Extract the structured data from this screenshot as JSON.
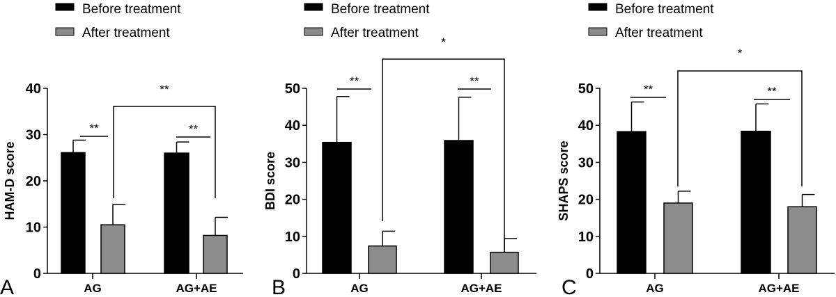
{
  "legend": {
    "before": "Before treatment",
    "after": "After treatment"
  },
  "colors": {
    "before": "#000000",
    "after": "#8c8c8c"
  },
  "chart_data": [
    {
      "type": "bar",
      "panel": "A",
      "ylabel": "HAM-D  score",
      "ylim": [
        0,
        40
      ],
      "yticks": [
        0,
        10,
        20,
        30,
        40
      ],
      "categories": [
        "AG",
        "AG+AE"
      ],
      "series": [
        {
          "name": "Before treatment",
          "values": [
            26.1,
            26.0
          ],
          "error": [
            2.7,
            2.4
          ]
        },
        {
          "name": "After treatment",
          "values": [
            10.5,
            8.2
          ],
          "error": [
            4.4,
            3.9
          ]
        }
      ],
      "annotations": {
        "pair": [
          "**",
          "**"
        ],
        "between": "**"
      }
    },
    {
      "type": "bar",
      "panel": "B",
      "ylabel": "BDI score",
      "ylim": [
        0,
        50
      ],
      "yticks": [
        0,
        10,
        20,
        30,
        40,
        50
      ],
      "categories": [
        "AG",
        "AG+AE"
      ],
      "series": [
        {
          "name": "Before treatment",
          "values": [
            35.4,
            35.9
          ],
          "error": [
            12.4,
            11.7
          ]
        },
        {
          "name": "After treatment",
          "values": [
            7.4,
            5.7
          ],
          "error": [
            4.0,
            3.7
          ]
        }
      ],
      "annotations": {
        "pair": [
          "**",
          "**"
        ],
        "between": "*"
      }
    },
    {
      "type": "bar",
      "panel": "C",
      "ylabel": "SHAPS  score",
      "ylim": [
        0,
        50
      ],
      "yticks": [
        0,
        10,
        20,
        30,
        40,
        50
      ],
      "categories": [
        "AG",
        "AG+AE"
      ],
      "series": [
        {
          "name": "Before treatment",
          "values": [
            38.3,
            38.4
          ],
          "error": [
            8.0,
            7.4
          ]
        },
        {
          "name": "After treatment",
          "values": [
            19.0,
            18.0
          ],
          "error": [
            3.2,
            3.3
          ]
        }
      ],
      "annotations": {
        "pair": [
          "**",
          "**"
        ],
        "between": "*"
      }
    }
  ]
}
